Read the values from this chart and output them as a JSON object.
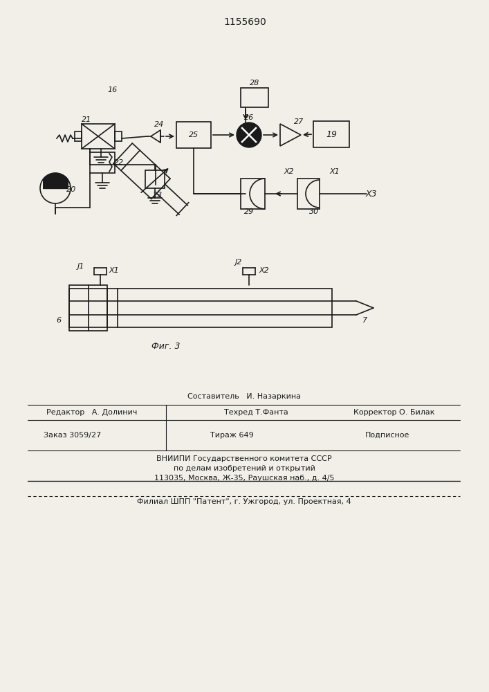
{
  "title": "1155690",
  "bg_color": "#f2efe9",
  "line_color": "#1a1a1a",
  "fig2_caption": "Фиг. 3",
  "footer_sestavitel": "Составитель   И. Назаркина",
  "footer_redaktor": "Редактор   А. Долинич",
  "footer_tehred": "Техред Т.Фанта",
  "footer_korrektor": "Корректор О. Билак",
  "footer_zakaz": "Заказ 3059/27",
  "footer_tirazh": "Тираж 649",
  "footer_podpisnoe": "Подписное",
  "footer_vniipи": "ВНИИПИ Государственного комитета СССР",
  "footer_po_delam": "по делам изобретений и открытий",
  "footer_address": "113035, Москва, Ж-35, Раушская наб., д. 4/5",
  "footer_filial": "Филиал ШПП \"Патент\", г. Ужгород, ул. Проектная, 4"
}
